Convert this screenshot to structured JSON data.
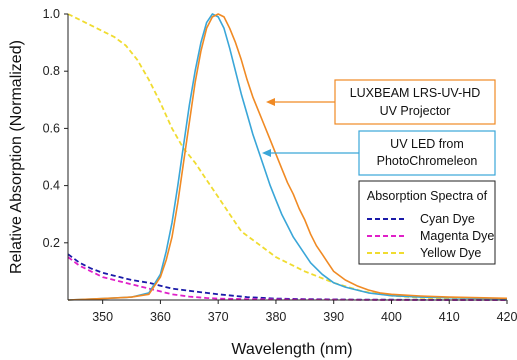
{
  "chart_data": {
    "type": "line",
    "xlabel": "Wavelength (nm)",
    "ylabel": "Relative Absorption (Normalized)",
    "xlim": [
      344,
      420
    ],
    "ylim": [
      0,
      1.0
    ],
    "x_ticks": [
      350,
      360,
      370,
      380,
      390,
      400,
      410,
      420
    ],
    "x_tick_labels": [
      "350",
      "360",
      "370",
      "380",
      "390",
      "400",
      "410",
      "420"
    ],
    "y_ticks": [
      0.2,
      0.4,
      0.6,
      0.8,
      1.0
    ],
    "y_tick_labels": [
      "0.2",
      "0.4",
      "0.6",
      "0.8",
      "1.0"
    ],
    "grid": false,
    "annotations": [
      {
        "lines": [
          "LUXBEAM LRS-UV-HD",
          "UV Projector"
        ],
        "border_color": "#f08a24",
        "arrow_to": [
          376.5,
          0.685
        ]
      },
      {
        "lines": [
          "UV LED from",
          "PhotoChromeleon"
        ],
        "border_color": "#3aa6d8",
        "arrow_to": [
          378.5,
          0.51
        ]
      }
    ],
    "legend": {
      "title": "Absorption Spectra of",
      "placement": "lower-right",
      "entries": [
        "Cyan Dye",
        "Magenta Dye",
        "Yellow Dye"
      ]
    },
    "series": [
      {
        "name": "LUXBEAM LRS-UV-HD UV Projector",
        "color": "#f08a24",
        "style": "solid",
        "x": [
          344,
          350,
          355,
          358,
          360,
          361,
          362,
          363,
          364,
          365,
          366,
          367,
          368,
          369,
          370,
          371,
          372,
          373,
          374,
          375,
          376,
          377,
          378,
          379,
          380,
          381,
          382,
          383,
          384,
          385,
          386,
          387,
          388,
          389,
          390,
          392,
          394,
          396,
          398,
          400,
          405,
          410,
          415,
          420
        ],
        "y": [
          0.0,
          0.005,
          0.01,
          0.02,
          0.08,
          0.14,
          0.22,
          0.34,
          0.48,
          0.62,
          0.76,
          0.87,
          0.95,
          0.99,
          1.0,
          0.99,
          0.95,
          0.9,
          0.84,
          0.77,
          0.71,
          0.66,
          0.61,
          0.56,
          0.51,
          0.46,
          0.41,
          0.37,
          0.32,
          0.28,
          0.23,
          0.19,
          0.16,
          0.13,
          0.1,
          0.07,
          0.05,
          0.035,
          0.025,
          0.02,
          0.014,
          0.01,
          0.008,
          0.006
        ]
      },
      {
        "name": "UV LED from PhotoChromeleon",
        "color": "#3aa6d8",
        "style": "solid",
        "x": [
          344,
          350,
          355,
          358,
          360,
          361,
          362,
          363,
          364,
          365,
          366,
          367,
          368,
          369,
          370,
          371,
          372,
          373,
          374,
          375,
          376,
          377,
          378,
          379,
          380,
          381,
          382,
          383,
          384,
          385,
          386,
          388,
          390,
          392,
          394,
          396,
          400,
          405,
          410,
          415,
          420
        ],
        "y": [
          0.0,
          0.005,
          0.01,
          0.025,
          0.09,
          0.17,
          0.27,
          0.4,
          0.54,
          0.68,
          0.8,
          0.9,
          0.97,
          1.0,
          0.99,
          0.95,
          0.88,
          0.8,
          0.72,
          0.65,
          0.58,
          0.52,
          0.46,
          0.4,
          0.35,
          0.3,
          0.26,
          0.22,
          0.19,
          0.16,
          0.13,
          0.09,
          0.06,
          0.045,
          0.035,
          0.025,
          0.015,
          0.01,
          0.008,
          0.006,
          0.005
        ]
      },
      {
        "name": "Cyan Dye",
        "color": "#1a1aa8",
        "style": "dashed",
        "x": [
          344,
          346,
          348,
          350,
          352,
          355,
          358,
          360,
          362,
          365,
          368,
          370,
          375,
          380,
          385,
          390,
          395,
          400,
          410,
          420
        ],
        "y": [
          0.16,
          0.13,
          0.11,
          0.095,
          0.085,
          0.07,
          0.06,
          0.05,
          0.04,
          0.032,
          0.025,
          0.02,
          0.01,
          0.005,
          0.003,
          0.002,
          0.001,
          0.001,
          0.0,
          0.0
        ]
      },
      {
        "name": "Magenta Dye",
        "color": "#e020c8",
        "style": "dashed",
        "x": [
          344,
          346,
          348,
          350,
          352,
          355,
          358,
          360,
          362,
          365,
          368,
          370,
          375,
          380,
          390,
          400,
          410,
          420
        ],
        "y": [
          0.15,
          0.12,
          0.1,
          0.08,
          0.07,
          0.055,
          0.04,
          0.03,
          0.02,
          0.012,
          0.007,
          0.005,
          0.003,
          0.002,
          0.001,
          0.0,
          0.0,
          0.0
        ]
      },
      {
        "name": "Yellow Dye",
        "color": "#f0dc30",
        "style": "dashed",
        "x": [
          344,
          346,
          348,
          350,
          352,
          354,
          356,
          358,
          360,
          362,
          364,
          366,
          368,
          370,
          372,
          374,
          376,
          378,
          380,
          385,
          390,
          395,
          400,
          405,
          410,
          420
        ],
        "y": [
          1.0,
          0.98,
          0.96,
          0.94,
          0.92,
          0.89,
          0.84,
          0.77,
          0.69,
          0.6,
          0.53,
          0.48,
          0.42,
          0.36,
          0.3,
          0.24,
          0.21,
          0.18,
          0.15,
          0.1,
          0.06,
          0.03,
          0.015,
          0.008,
          0.005,
          0.003
        ]
      }
    ]
  }
}
